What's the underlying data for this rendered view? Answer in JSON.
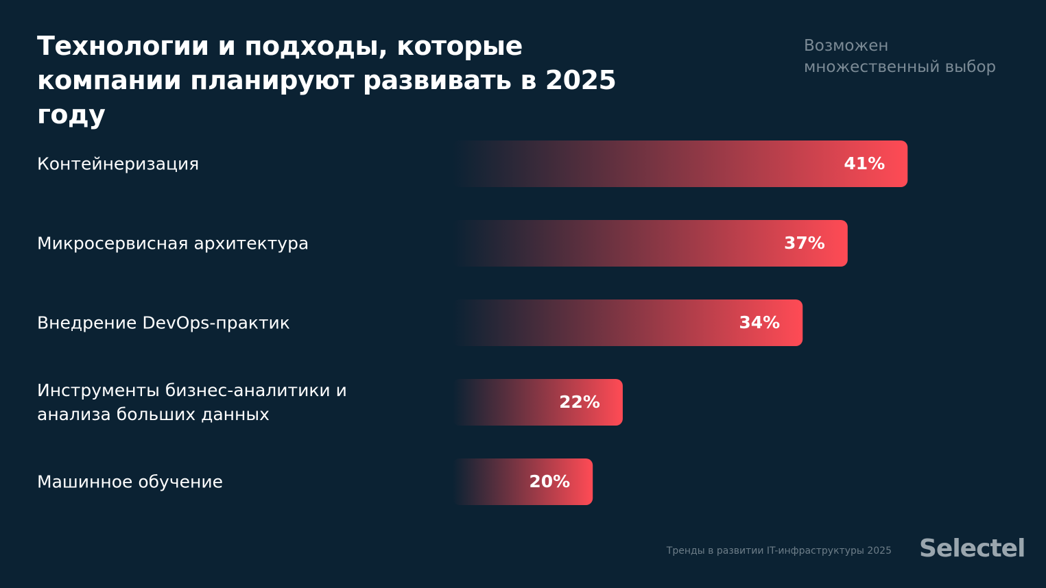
{
  "chart_data": {
    "type": "bar",
    "orientation": "horizontal",
    "title": "Технологии и подходы, которые компании планируют развивать в 2025 году",
    "subtitle": "Возможен множественный выбор",
    "categories": [
      "Контейнеризация",
      "Микросервисная архитектура",
      "Внедрение DevOps-практик",
      "Инструменты бизнес-аналитики и анализа больших данных",
      "Машинное обучение"
    ],
    "values": [
      41,
      37,
      34,
      22,
      20
    ],
    "value_labels": [
      "41%",
      "37%",
      "34%",
      "22%",
      "20%"
    ],
    "color": "#ff4b55",
    "source": "Тренды в развитии IT-инфраструктуры 2025",
    "brand": "Selectel"
  }
}
